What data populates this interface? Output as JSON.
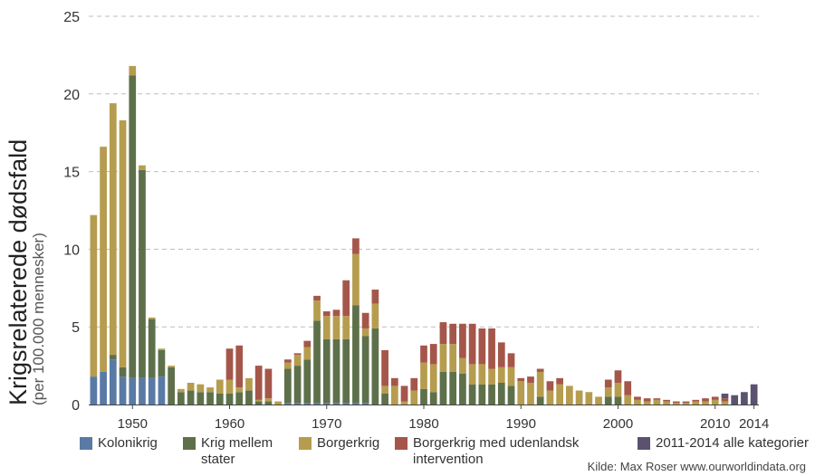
{
  "chart_data": {
    "type": "bar",
    "stacked": true,
    "ylabel": "Krigsrelaterede dødsfald",
    "ylabel_sub": "(per 100.000 mennesker)",
    "ylim": [
      0,
      25
    ],
    "y_ticks": [
      "0",
      "5",
      "10",
      "15",
      "20",
      "25"
    ],
    "x_ticks": [
      "1950",
      "1960",
      "1970",
      "1980",
      "1990",
      "2000",
      "2010",
      "2014"
    ],
    "x_tick_values": [
      1950,
      1960,
      1970,
      1980,
      1990,
      2000,
      2010,
      2014
    ],
    "grid": "horizontal-dashed",
    "legend_position": "bottom",
    "years": [
      1946,
      1947,
      1948,
      1949,
      1950,
      1951,
      1952,
      1953,
      1954,
      1955,
      1956,
      1957,
      1958,
      1959,
      1960,
      1961,
      1962,
      1963,
      1964,
      1965,
      1966,
      1967,
      1968,
      1969,
      1970,
      1971,
      1972,
      1973,
      1974,
      1975,
      1976,
      1977,
      1978,
      1979,
      1980,
      1981,
      1982,
      1983,
      1984,
      1985,
      1986,
      1987,
      1988,
      1989,
      1990,
      1991,
      1992,
      1993,
      1994,
      1995,
      1996,
      1997,
      1998,
      1999,
      2000,
      2001,
      2002,
      2003,
      2004,
      2005,
      2006,
      2007,
      2008,
      2009,
      2010,
      2011,
      2012,
      2013,
      2014
    ],
    "series": [
      {
        "name": "Kolonikrig",
        "color": "#5a7aa6",
        "values": [
          1.8,
          2.1,
          2.9,
          1.8,
          1.7,
          1.7,
          1.7,
          1.8,
          0,
          0,
          0,
          0,
          0,
          0,
          0,
          0,
          0,
          0,
          0,
          0,
          0.1,
          0.1,
          0.1,
          0.1,
          0.1,
          0.1,
          0.1,
          0.1,
          0.1,
          0,
          0,
          0,
          0,
          0,
          0,
          0,
          0,
          0,
          0,
          0,
          0,
          0,
          0,
          0,
          0,
          0,
          0,
          0,
          0,
          0,
          0,
          0,
          0,
          0,
          0,
          0,
          0,
          0,
          0,
          0,
          0,
          0,
          0,
          0,
          0,
          0,
          0,
          0,
          0
        ]
      },
      {
        "name": "Krig mellem stater",
        "color": "#5e704a",
        "values": [
          0,
          0,
          0.3,
          0.6,
          19.5,
          13.4,
          3.8,
          1.7,
          2.4,
          0.8,
          0.9,
          0.8,
          0.8,
          0.7,
          0.7,
          0.8,
          0.9,
          0.2,
          0.2,
          0,
          2.2,
          2.4,
          2.8,
          5.3,
          4.1,
          4.1,
          4.1,
          6.3,
          4.3,
          4.9,
          0.7,
          0,
          0,
          0,
          1.0,
          0.8,
          2.1,
          2.1,
          2.0,
          1.3,
          1.3,
          1.3,
          1.4,
          1.2,
          0,
          0,
          0.5,
          0,
          0,
          0,
          0,
          0,
          0,
          0.5,
          0.5,
          0,
          0,
          0,
          0,
          0,
          0,
          0,
          0,
          0,
          0,
          0,
          0,
          0,
          0
        ]
      },
      {
        "name": "Borgerkrig",
        "color": "#b69c4e",
        "values": [
          10.4,
          14.5,
          16.2,
          15.9,
          0.6,
          0.3,
          0.1,
          0.1,
          0.1,
          0.2,
          0.5,
          0.5,
          0.3,
          0.9,
          0.9,
          0.3,
          0.8,
          0.1,
          0.2,
          0.2,
          0.4,
          0.7,
          0.8,
          1.3,
          1.5,
          1.5,
          1.5,
          3.3,
          0.5,
          1.6,
          0.5,
          1.2,
          0.2,
          0.9,
          1.7,
          1.8,
          1.8,
          1.8,
          1.0,
          1.3,
          1.3,
          1.0,
          1.0,
          1.2,
          1.5,
          1.4,
          1.6,
          0.9,
          1.3,
          1.2,
          0.9,
          0.8,
          0.5,
          0.6,
          0.9,
          0.6,
          0.3,
          0.2,
          0.3,
          0.2,
          0.1,
          0.1,
          0.2,
          0.2,
          0.3,
          0.2,
          0,
          0,
          0
        ]
      },
      {
        "name": "Borgerkrig med udenlandsk intervention",
        "color": "#a5564a",
        "values": [
          0,
          0,
          0,
          0,
          0,
          0,
          0,
          0,
          0,
          0,
          0,
          0,
          0,
          0,
          2.0,
          2.7,
          0,
          2.2,
          1.9,
          0,
          0.2,
          0.1,
          0.4,
          0.3,
          0.3,
          0.4,
          2.3,
          1.0,
          1.0,
          0.9,
          2.3,
          0.5,
          1.0,
          0.8,
          1.1,
          1.3,
          1.4,
          1.3,
          2.2,
          2.6,
          2.3,
          2.6,
          1.6,
          0.9,
          0.2,
          0.4,
          0.2,
          0.6,
          0.4,
          0,
          0,
          0,
          0,
          0.5,
          0.8,
          0.9,
          0.2,
          0.2,
          0.1,
          0.1,
          0.1,
          0.1,
          0.1,
          0.2,
          0.2,
          0.2,
          0,
          0,
          0
        ]
      },
      {
        "name": "2011-2014 alle kategorier",
        "color": "#5a5270",
        "values": [
          0,
          0,
          0,
          0,
          0,
          0,
          0,
          0,
          0,
          0,
          0,
          0,
          0,
          0,
          0,
          0,
          0,
          0,
          0,
          0,
          0,
          0,
          0,
          0,
          0,
          0,
          0,
          0,
          0,
          0,
          0,
          0,
          0,
          0,
          0,
          0,
          0,
          0,
          0,
          0,
          0,
          0,
          0,
          0,
          0,
          0,
          0,
          0,
          0,
          0,
          0,
          0,
          0,
          0,
          0,
          0,
          0,
          0,
          0,
          0,
          0,
          0,
          0,
          0,
          0,
          0.3,
          0.6,
          0.8,
          1.3
        ]
      }
    ]
  },
  "legend": [
    {
      "label": "Kolonikrig"
    },
    {
      "label": "Krig mellem stater"
    },
    {
      "label": "Borgerkrig"
    },
    {
      "label": "Borgerkrig med udenlandsk intervention"
    },
    {
      "label": "2011-2014 alle kategorier"
    }
  ],
  "source": "Kilde: Max Roser www.ourworldindata.org"
}
